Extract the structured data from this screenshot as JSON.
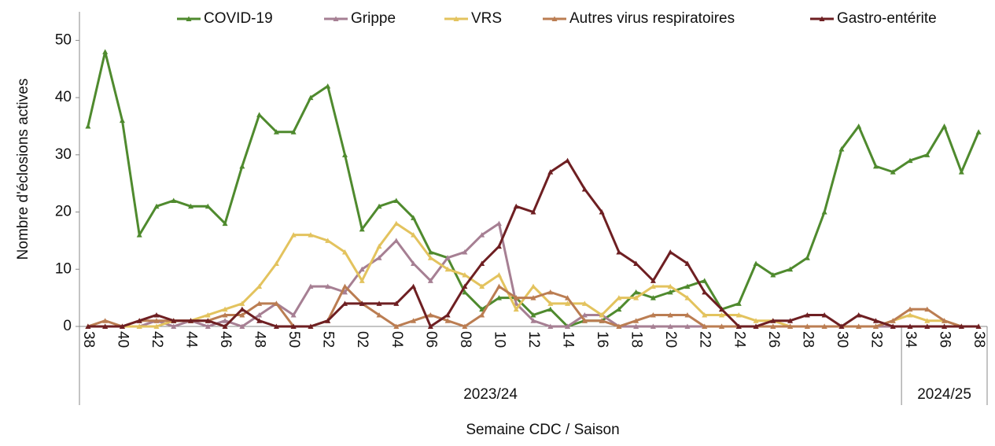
{
  "chart_data": {
    "type": "line",
    "x_label": "Semaine CDC / Saison",
    "y_label": "Nombre d'éclosions actives",
    "categories": [
      "38",
      null,
      "40",
      null,
      "42",
      null,
      "44",
      null,
      "46",
      null,
      "48",
      null,
      "50",
      null,
      "52",
      null,
      "02",
      null,
      "04",
      null,
      "06",
      null,
      "08",
      null,
      "10",
      null,
      "12",
      null,
      "14",
      null,
      "16",
      null,
      "18",
      null,
      "20",
      null,
      "22",
      null,
      "24",
      null,
      "26",
      null,
      "28",
      null,
      "30",
      null,
      "32",
      null,
      "34",
      null,
      "36",
      null,
      "38"
    ],
    "seasons": [
      {
        "label": "2023/24",
        "count": 48
      },
      {
        "label": "2024/25",
        "count": 5
      }
    ],
    "ylim": [
      0,
      55
    ],
    "yticks": [
      0,
      10,
      20,
      30,
      40,
      50
    ],
    "series": [
      {
        "name": "COVID-19",
        "color": "#4f8a2e",
        "values": [
          35,
          48,
          36,
          16,
          21,
          22,
          21,
          21,
          18,
          28,
          37,
          34,
          34,
          40,
          42,
          30,
          17,
          21,
          22,
          19,
          13,
          12,
          6,
          3,
          5,
          5,
          2,
          3,
          0,
          1,
          1,
          3,
          6,
          5,
          6,
          7,
          8,
          3,
          4,
          11,
          9,
          10,
          12,
          20,
          31,
          35,
          28,
          27,
          29,
          30,
          35,
          27,
          34
        ]
      },
      {
        "name": "Grippe",
        "color": "#a67f93",
        "values": [
          0,
          0,
          0,
          0,
          1,
          0,
          1,
          0,
          1,
          0,
          2,
          4,
          2,
          7,
          7,
          6,
          10,
          12,
          15,
          11,
          8,
          12,
          13,
          16,
          18,
          4,
          1,
          0,
          0,
          2,
          2,
          0,
          0,
          0,
          0,
          0,
          0,
          0,
          0,
          0,
          0,
          0,
          0,
          0,
          0,
          0,
          0,
          0,
          0,
          0,
          0,
          0,
          0
        ]
      },
      {
        "name": "VRS",
        "color": "#e3c35e",
        "values": [
          0,
          0,
          0,
          0,
          0,
          1,
          1,
          2,
          3,
          4,
          7,
          11,
          16,
          16,
          15,
          13,
          8,
          14,
          18,
          16,
          12,
          10,
          9,
          7,
          9,
          3,
          7,
          4,
          4,
          4,
          2,
          5,
          5,
          7,
          7,
          5,
          2,
          2,
          2,
          1,
          1,
          0,
          0,
          0,
          0,
          0,
          0,
          1,
          2,
          1,
          1,
          0,
          0
        ]
      },
      {
        "name": "Autres virus respiratoires",
        "color": "#bb7d52",
        "values": [
          0,
          1,
          0,
          1,
          1,
          1,
          1,
          1,
          2,
          2,
          4,
          4,
          0,
          0,
          1,
          7,
          4,
          2,
          0,
          1,
          2,
          1,
          0,
          2,
          7,
          5,
          5,
          6,
          5,
          1,
          1,
          0,
          1,
          2,
          2,
          2,
          0,
          0,
          0,
          0,
          0,
          0,
          0,
          0,
          0,
          0,
          0,
          1,
          3,
          3,
          1,
          0,
          0
        ]
      },
      {
        "name": "Gastro-entérite",
        "color": "#6e1f22",
        "values": [
          0,
          0,
          0,
          1,
          2,
          1,
          1,
          1,
          0,
          3,
          1,
          0,
          0,
          0,
          1,
          4,
          4,
          4,
          4,
          7,
          0,
          2,
          7,
          11,
          14,
          21,
          20,
          27,
          29,
          24,
          20,
          13,
          11,
          8,
          13,
          11,
          6,
          3,
          0,
          0,
          1,
          1,
          2,
          2,
          0,
          2,
          1,
          0,
          0,
          0,
          0,
          0,
          0
        ]
      }
    ]
  }
}
